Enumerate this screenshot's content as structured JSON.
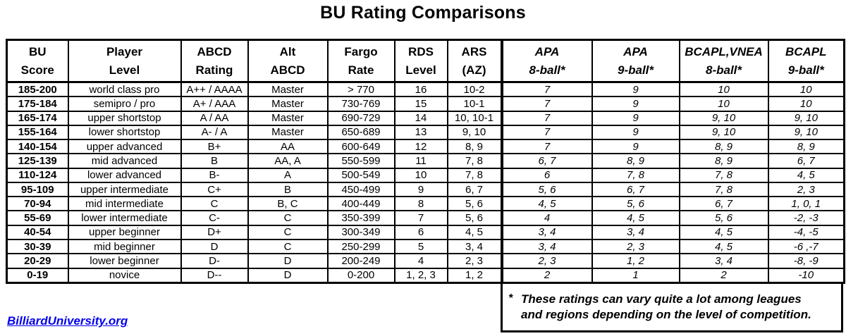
{
  "title": "BU Rating Comparisons",
  "link_text": "BilliardUniversity.org",
  "footnote": {
    "marker": "*",
    "line1": "These ratings can vary quite a lot among leagues",
    "line2": "and regions depending on the level of competition."
  },
  "colors": {
    "text": "#000000",
    "border": "#000000",
    "background": "#ffffff",
    "link": "#0000ee"
  },
  "table": {
    "columns": [
      {
        "line1": "BU",
        "line2": "Score",
        "italic": false
      },
      {
        "line1": "Player",
        "line2": "Level",
        "italic": false
      },
      {
        "line1": "ABCD",
        "line2": "Rating",
        "italic": false
      },
      {
        "line1": "Alt",
        "line2": "ABCD",
        "italic": false
      },
      {
        "line1": "Fargo",
        "line2": "Rate",
        "italic": false
      },
      {
        "line1": "RDS",
        "line2": "Level",
        "italic": false
      },
      {
        "line1": "ARS",
        "line2": "(AZ)",
        "italic": false
      },
      {
        "line1": "APA",
        "line2": "8-ball*",
        "italic": true
      },
      {
        "line1": "APA",
        "line2": "9-ball*",
        "italic": true
      },
      {
        "line1": "BCAPL,VNEA",
        "line2": "8-ball*",
        "italic": true
      },
      {
        "line1": "BCAPL",
        "line2": "9-ball*",
        "italic": true
      }
    ],
    "rows": [
      [
        "185-200",
        "world class pro",
        "A++ / AAAA",
        "Master",
        "> 770",
        "16",
        "10-2",
        "7",
        "9",
        "10",
        "10"
      ],
      [
        "175-184",
        "semipro / pro",
        "A+ / AAA",
        "Master",
        "730-769",
        "15",
        "10-1",
        "7",
        "9",
        "10",
        "10"
      ],
      [
        "165-174",
        "upper shortstop",
        "A / AA",
        "Master",
        "690-729",
        "14",
        "10, 10-1",
        "7",
        "9",
        "9, 10",
        "9, 10"
      ],
      [
        "155-164",
        "lower shortstop",
        "A- / A",
        "Master",
        "650-689",
        "13",
        "9, 10",
        "7",
        "9",
        "9, 10",
        "9, 10"
      ],
      [
        "140-154",
        "upper advanced",
        "B+",
        "AA",
        "600-649",
        "12",
        "8, 9",
        "7",
        "9",
        "8, 9",
        "8, 9"
      ],
      [
        "125-139",
        "mid advanced",
        "B",
        "AA, A",
        "550-599",
        "11",
        "7, 8",
        "6, 7",
        "8, 9",
        "8, 9",
        "6, 7"
      ],
      [
        "110-124",
        "lower advanced",
        "B-",
        "A",
        "500-549",
        "10",
        "7, 8",
        "6",
        "7, 8",
        "7, 8",
        "4, 5"
      ],
      [
        "95-109",
        "upper intermediate",
        "C+",
        "B",
        "450-499",
        "9",
        "6, 7",
        "5, 6",
        "6, 7",
        "7, 8",
        "2, 3"
      ],
      [
        "70-94",
        "mid intermediate",
        "C",
        "B, C",
        "400-449",
        "8",
        "5, 6",
        "4, 5",
        "5, 6",
        "6, 7",
        "1, 0, 1"
      ],
      [
        "55-69",
        "lower intermediate",
        "C-",
        "C",
        "350-399",
        "7",
        "5, 6",
        "4",
        "4, 5",
        "5, 6",
        "-2, -3"
      ],
      [
        "40-54",
        "upper beginner",
        "D+",
        "C",
        "300-349",
        "6",
        "4, 5",
        "3, 4",
        "3, 4",
        "4, 5",
        "-4, -5"
      ],
      [
        "30-39",
        "mid beginner",
        "D",
        "C",
        "250-299",
        "5",
        "3, 4",
        "3, 4",
        "2, 3",
        "4, 5",
        "-6 ,-7"
      ],
      [
        "20-29",
        "lower beginner",
        "D-",
        "D",
        "200-249",
        "4",
        "2, 3",
        "2, 3",
        "1, 2",
        "3, 4",
        "-8, -9"
      ],
      [
        "0-19",
        "novice",
        "D--",
        "D",
        "0-200",
        "1, 2, 3",
        "1, 2",
        "2",
        "1",
        "2",
        "-10"
      ]
    ]
  }
}
